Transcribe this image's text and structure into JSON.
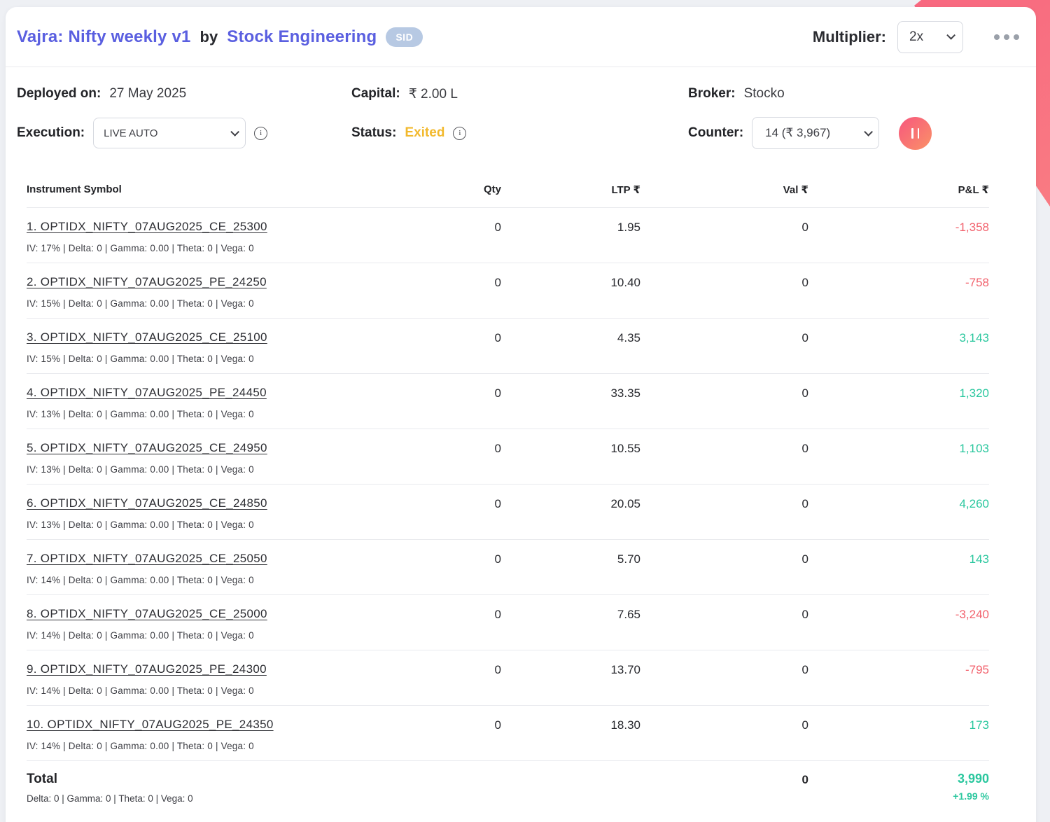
{
  "colors": {
    "accent_purple": "#5a5fe0",
    "positive": "#2ac79e",
    "negative": "#f2626d",
    "status_amber": "#f2b92d",
    "ribbon_pink": "#f75c7c",
    "badge_blue": "#b7c9e3",
    "background": "#eef0f4"
  },
  "header": {
    "title": "Vajra: Nifty weekly v1",
    "by": "by",
    "author": "Stock Engineering",
    "badge": "SID",
    "multiplier_label": "Multiplier:",
    "multiplier_value": "2x",
    "menu_icon": "ellipsis-icon"
  },
  "info": {
    "deployed_label": "Deployed on:",
    "deployed_value": "27 May 2025",
    "capital_label": "Capital:",
    "capital_value": "₹ 2.00 L",
    "broker_label": "Broker:",
    "broker_value": "Stocko",
    "execution_label": "Execution:",
    "execution_value": "LIVE AUTO",
    "status_label": "Status:",
    "status_value": "Exited",
    "counter_label": "Counter:",
    "counter_value": "14 (₹ 3,967)",
    "pause_icon": "pause-icon"
  },
  "table": {
    "columns": [
      "Instrument Symbol",
      "Qty",
      "LTP ₹",
      "Val ₹",
      "P&L ₹"
    ],
    "rows": [
      {
        "symbol": "1. OPTIDX_NIFTY_07AUG2025_CE_25300",
        "greeks": "IV: 17% | Delta: 0 | Gamma: 0.00 | Theta: 0 | Vega: 0",
        "qty": "0",
        "ltp": "1.95",
        "val": "0",
        "pnl": "-1,358",
        "trend": "neg"
      },
      {
        "symbol": "2. OPTIDX_NIFTY_07AUG2025_PE_24250",
        "greeks": "IV: 15% | Delta: 0 | Gamma: 0.00 | Theta: 0 | Vega: 0",
        "qty": "0",
        "ltp": "10.40",
        "val": "0",
        "pnl": "-758",
        "trend": "neg"
      },
      {
        "symbol": "3. OPTIDX_NIFTY_07AUG2025_CE_25100",
        "greeks": "IV: 15% | Delta: 0 | Gamma: 0.00 | Theta: 0 | Vega: 0",
        "qty": "0",
        "ltp": "4.35",
        "val": "0",
        "pnl": "3,143",
        "trend": "pos"
      },
      {
        "symbol": "4. OPTIDX_NIFTY_07AUG2025_PE_24450",
        "greeks": "IV: 13% | Delta: 0 | Gamma: 0.00 | Theta: 0 | Vega: 0",
        "qty": "0",
        "ltp": "33.35",
        "val": "0",
        "pnl": "1,320",
        "trend": "pos"
      },
      {
        "symbol": "5. OPTIDX_NIFTY_07AUG2025_CE_24950",
        "greeks": "IV: 13% | Delta: 0 | Gamma: 0.00 | Theta: 0 | Vega: 0",
        "qty": "0",
        "ltp": "10.55",
        "val": "0",
        "pnl": "1,103",
        "trend": "pos"
      },
      {
        "symbol": "6. OPTIDX_NIFTY_07AUG2025_CE_24850",
        "greeks": "IV: 13% | Delta: 0 | Gamma: 0.00 | Theta: 0 | Vega: 0",
        "qty": "0",
        "ltp": "20.05",
        "val": "0",
        "pnl": "4,260",
        "trend": "pos"
      },
      {
        "symbol": "7. OPTIDX_NIFTY_07AUG2025_CE_25050",
        "greeks": "IV: 14% | Delta: 0 | Gamma: 0.00 | Theta: 0 | Vega: 0",
        "qty": "0",
        "ltp": "5.70",
        "val": "0",
        "pnl": "143",
        "trend": "pos"
      },
      {
        "symbol": "8. OPTIDX_NIFTY_07AUG2025_CE_25000",
        "greeks": "IV: 14% | Delta: 0 | Gamma: 0.00 | Theta: 0 | Vega: 0",
        "qty": "0",
        "ltp": "7.65",
        "val": "0",
        "pnl": "-3,240",
        "trend": "neg"
      },
      {
        "symbol": "9. OPTIDX_NIFTY_07AUG2025_PE_24300",
        "greeks": "IV: 14% | Delta: 0 | Gamma: 0.00 | Theta: 0 | Vega: 0",
        "qty": "0",
        "ltp": "13.70",
        "val": "0",
        "pnl": "-795",
        "trend": "neg"
      },
      {
        "symbol": "10. OPTIDX_NIFTY_07AUG2025_PE_24350",
        "greeks": "IV: 14% | Delta: 0 | Gamma: 0.00 | Theta: 0 | Vega: 0",
        "qty": "0",
        "ltp": "18.30",
        "val": "0",
        "pnl": "173",
        "trend": "pos"
      }
    ],
    "total": {
      "label": "Total",
      "greeks": "Delta: 0 | Gamma: 0  | Theta: 0 | Vega: 0",
      "val": "0",
      "pnl": "3,990",
      "pnl_pct": "+1.99 %"
    }
  }
}
